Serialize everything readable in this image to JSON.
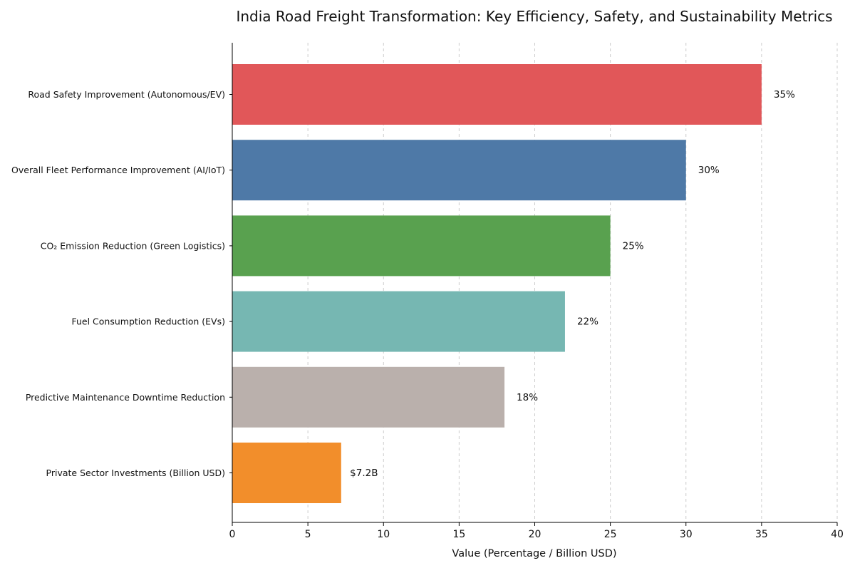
{
  "chart_data": {
    "type": "bar",
    "orientation": "horizontal",
    "title": "India Road Freight Transformation: Key Efficiency, Safety, and Sustainability Metrics",
    "xlabel": "Value (Percentage / Billion USD)",
    "ylabel": "",
    "xlim": [
      0,
      40
    ],
    "x_ticks": [
      0,
      5,
      10,
      15,
      20,
      25,
      30,
      35,
      40
    ],
    "grid": "vertical dashed",
    "legend": "none",
    "categories": [
      "Road Safety Improvement (Autonomous/EV)",
      "Overall Fleet Performance Improvement (AI/IoT)",
      "CO₂ Emission Reduction (Green Logistics)",
      "Fuel Consumption Reduction (EVs)",
      "Predictive Maintenance Downtime Reduction",
      "Private Sector Investments (Billion USD)"
    ],
    "values": [
      35,
      30,
      25,
      22,
      18,
      7.2
    ],
    "value_labels": [
      "35%",
      "30%",
      "25%",
      "22%",
      "18%",
      "$7.2B"
    ],
    "colors": [
      "#e15759",
      "#4e79a7",
      "#59a14f",
      "#76b7b2",
      "#bab0ac",
      "#f28e2b"
    ]
  }
}
